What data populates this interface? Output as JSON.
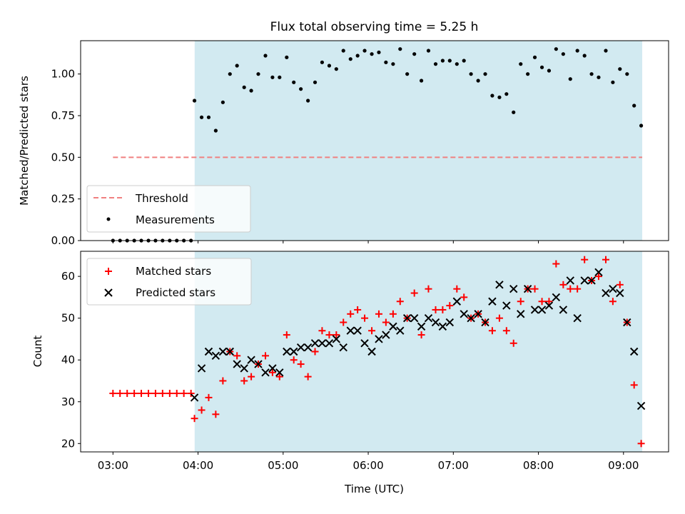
{
  "chart_data": [
    {
      "type": "scatter",
      "title": "Flux total observing time = 5.25 h",
      "ylabel": "Matched/Predicted stars",
      "xlabel": "",
      "ylim": [
        0,
        1.2
      ],
      "yticks": [
        0.0,
        0.25,
        0.5,
        0.75,
        1.0
      ],
      "ytick_labels": [
        "0.00",
        "0.25",
        "0.50",
        "0.75",
        "1.00"
      ],
      "x_unit": "hours UTC",
      "xlim": [
        2.62,
        9.53
      ],
      "xticks": [
        3,
        4,
        5,
        6,
        7,
        8,
        9
      ],
      "xtick_labels": [
        "03:00",
        "04:00",
        "05:00",
        "06:00",
        "07:00",
        "08:00",
        "09:00"
      ],
      "shaded_span": [
        3.96,
        9.22
      ],
      "shade_color": "#add8e6",
      "threshold": {
        "name": "Threshold",
        "y": 0.5,
        "x_start": 3.0,
        "x_end": 9.22,
        "color": "#f08080"
      },
      "legend": {
        "position": "lower-left",
        "entries": [
          "Threshold",
          "Measurements"
        ]
      },
      "series": [
        {
          "name": "Measurements",
          "color": "#000000",
          "marker": "dot",
          "x": [
            3.0,
            3.083,
            3.167,
            3.25,
            3.333,
            3.417,
            3.5,
            3.583,
            3.667,
            3.75,
            3.833,
            3.917,
            3.958,
            4.042,
            4.125,
            4.208,
            4.292,
            4.375,
            4.458,
            4.542,
            4.625,
            4.708,
            4.792,
            4.875,
            4.958,
            5.042,
            5.125,
            5.208,
            5.292,
            5.375,
            5.458,
            5.542,
            5.625,
            5.708,
            5.792,
            5.875,
            5.958,
            6.042,
            6.125,
            6.208,
            6.292,
            6.375,
            6.458,
            6.542,
            6.625,
            6.708,
            6.792,
            6.875,
            6.958,
            7.042,
            7.125,
            7.208,
            7.292,
            7.375,
            7.458,
            7.542,
            7.625,
            7.708,
            7.792,
            7.875,
            7.958,
            8.042,
            8.125,
            8.208,
            8.292,
            8.375,
            8.458,
            8.542,
            8.625,
            8.708,
            8.792,
            8.875,
            8.958,
            9.042,
            9.125,
            9.208
          ],
          "y": [
            0,
            0,
            0,
            0,
            0,
            0,
            0,
            0,
            0,
            0,
            0,
            0,
            0.84,
            0.74,
            0.74,
            0.66,
            0.83,
            1.0,
            1.05,
            0.92,
            0.9,
            1.0,
            1.11,
            0.98,
            0.98,
            1.1,
            0.95,
            0.91,
            0.84,
            0.95,
            1.07,
            1.05,
            1.03,
            1.14,
            1.09,
            1.11,
            1.14,
            1.12,
            1.13,
            1.07,
            1.06,
            1.15,
            1.0,
            1.12,
            0.96,
            1.14,
            1.06,
            1.08,
            1.08,
            1.06,
            1.08,
            1.0,
            0.96,
            1.0,
            0.87,
            0.86,
            0.88,
            0.77,
            1.06,
            1.0,
            1.1,
            1.04,
            1.02,
            1.15,
            1.12,
            0.97,
            1.14,
            1.11,
            1.0,
            0.98,
            1.14,
            0.95,
            1.03,
            1.0,
            0.81,
            0.69
          ]
        }
      ]
    },
    {
      "type": "scatter",
      "title": "",
      "ylabel": "Count",
      "xlabel": "Time (UTC)",
      "ylim": [
        18,
        66
      ],
      "yticks": [
        20,
        30,
        40,
        50,
        60
      ],
      "ytick_labels": [
        "20",
        "30",
        "40",
        "50",
        "60"
      ],
      "x_unit": "hours UTC",
      "xlim": [
        2.62,
        9.53
      ],
      "xticks": [
        3,
        4,
        5,
        6,
        7,
        8,
        9
      ],
      "xtick_labels": [
        "03:00",
        "04:00",
        "05:00",
        "06:00",
        "07:00",
        "08:00",
        "09:00"
      ],
      "shaded_span": [
        3.96,
        9.22
      ],
      "shade_color": "#add8e6",
      "legend": {
        "position": "top-left",
        "entries": [
          "Matched stars",
          "Predicted stars"
        ]
      },
      "series": [
        {
          "name": "Matched stars",
          "color": "#ff0000",
          "marker": "plus",
          "x": [
            3.0,
            3.083,
            3.167,
            3.25,
            3.333,
            3.417,
            3.5,
            3.583,
            3.667,
            3.75,
            3.833,
            3.917,
            3.958,
            4.042,
            4.125,
            4.208,
            4.292,
            4.375,
            4.458,
            4.542,
            4.625,
            4.708,
            4.792,
            4.875,
            4.958,
            5.042,
            5.125,
            5.208,
            5.292,
            5.375,
            5.458,
            5.542,
            5.625,
            5.708,
            5.792,
            5.875,
            5.958,
            6.042,
            6.125,
            6.208,
            6.292,
            6.375,
            6.458,
            6.542,
            6.625,
            6.708,
            6.792,
            6.875,
            6.958,
            7.042,
            7.125,
            7.208,
            7.292,
            7.375,
            7.458,
            7.542,
            7.625,
            7.708,
            7.792,
            7.875,
            7.958,
            8.042,
            8.125,
            8.208,
            8.292,
            8.375,
            8.458,
            8.542,
            8.625,
            8.708,
            8.792,
            8.875,
            8.958,
            9.042,
            9.125,
            9.208
          ],
          "y": [
            32,
            32,
            32,
            32,
            32,
            32,
            32,
            32,
            32,
            32,
            32,
            32,
            26,
            28,
            31,
            27,
            35,
            42,
            41,
            35,
            36,
            39,
            41,
            37,
            36,
            46,
            40,
            39,
            36,
            42,
            47,
            46,
            46,
            49,
            51,
            52,
            50,
            47,
            51,
            49,
            51,
            54,
            50,
            56,
            46,
            57,
            52,
            52,
            53,
            57,
            55,
            50,
            51,
            49,
            47,
            50,
            47,
            44,
            54,
            57,
            57,
            54,
            54,
            63,
            58,
            57,
            57,
            64,
            59,
            60,
            64,
            54,
            58,
            49,
            34,
            20
          ]
        },
        {
          "name": "Predicted stars",
          "color": "#000000",
          "marker": "x",
          "x": [
            3.958,
            4.042,
            4.125,
            4.208,
            4.292,
            4.375,
            4.458,
            4.542,
            4.625,
            4.708,
            4.792,
            4.875,
            4.958,
            5.042,
            5.125,
            5.208,
            5.292,
            5.375,
            5.458,
            5.542,
            5.625,
            5.708,
            5.792,
            5.875,
            5.958,
            6.042,
            6.125,
            6.208,
            6.292,
            6.375,
            6.458,
            6.542,
            6.625,
            6.708,
            6.792,
            6.875,
            6.958,
            7.042,
            7.125,
            7.208,
            7.292,
            7.375,
            7.458,
            7.542,
            7.625,
            7.708,
            7.792,
            7.875,
            7.958,
            8.042,
            8.125,
            8.208,
            8.292,
            8.375,
            8.458,
            8.542,
            8.625,
            8.708,
            8.792,
            8.875,
            8.958,
            9.042,
            9.125,
            9.208
          ],
          "y": [
            31,
            38,
            42,
            41,
            42,
            42,
            39,
            38,
            40,
            39,
            37,
            38,
            37,
            42,
            42,
            43,
            43,
            44,
            44,
            44,
            45,
            43,
            47,
            47,
            44,
            42,
            45,
            46,
            48,
            47,
            50,
            50,
            48,
            50,
            49,
            48,
            49,
            54,
            51,
            50,
            51,
            49,
            54,
            58,
            53,
            57,
            51,
            57,
            52,
            52,
            53,
            55,
            52,
            59,
            50,
            59,
            59,
            61,
            56,
            57,
            56,
            49,
            42,
            29
          ]
        }
      ]
    }
  ]
}
